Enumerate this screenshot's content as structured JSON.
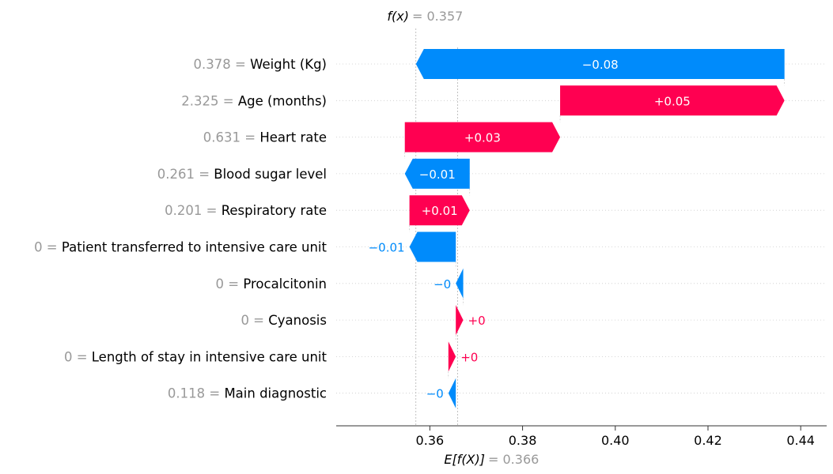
{
  "chart_data": {
    "type": "waterfall",
    "fx_label": "f(x)",
    "fx_eq": "= 0.357",
    "fx_value": 0.357,
    "base_label": "E[f(X)]",
    "base_eq": "= 0.366",
    "base_value": 0.366,
    "xlim": [
      0.3398,
      0.4456
    ],
    "xticks": [
      0.36,
      0.38,
      0.4,
      0.42,
      0.44
    ],
    "xtick_labels": [
      "0.36",
      "0.38",
      "0.40",
      "0.42",
      "0.44"
    ],
    "features": [
      {
        "value_text": "0.378",
        "name": "Weight (Kg)",
        "contribution": -0.0795,
        "label": "−0.08"
      },
      {
        "value_text": "2.325",
        "name": "Age (months)",
        "contribution": 0.0484,
        "label": "+0.05"
      },
      {
        "value_text": "0.631",
        "name": "Heart rate",
        "contribution": 0.0335,
        "label": "+0.03"
      },
      {
        "value_text": "0.261",
        "name": "Blood sugar level",
        "contribution": -0.014,
        "label": "−0.01"
      },
      {
        "value_text": "0.201",
        "name": "Respiratory rate",
        "contribution": 0.013,
        "label": "+0.01"
      },
      {
        "value_text": "0",
        "name": "Patient transferred to intensive care unit",
        "contribution": -0.01,
        "label": "−0.01"
      },
      {
        "value_text": "0",
        "name": "Procalcitonin",
        "contribution": -0.0016,
        "label": "−0"
      },
      {
        "value_text": "0",
        "name": "Cyanosis",
        "contribution": 0.0016,
        "label": "+0"
      },
      {
        "value_text": "0",
        "name": "Length of stay in intensive care unit",
        "contribution": 0.0016,
        "label": "+0"
      },
      {
        "value_text": "0.118",
        "name": "Main diagnostic",
        "contribution": -0.0016,
        "label": "−0"
      }
    ],
    "colors": {
      "positive": "#ff0051",
      "negative": "#008bfb",
      "value_text": "#999999",
      "gridline": "#cccccc"
    }
  }
}
